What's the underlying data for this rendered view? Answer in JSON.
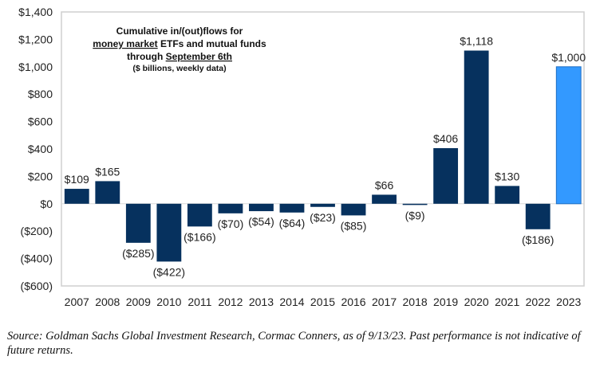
{
  "chart_data": {
    "type": "bar",
    "title_lines": [
      [
        {
          "text": "Cumulative in/(out)flows for",
          "underline": false
        }
      ],
      [
        {
          "text": "money market",
          "underline": true
        },
        {
          "text": " ETFs and mutual funds",
          "underline": false
        }
      ],
      [
        {
          "text": "through ",
          "underline": false
        },
        {
          "text": "September 6th",
          "underline": true
        }
      ]
    ],
    "subtitle": "($ billions, weekly data)",
    "xlabel": "",
    "ylabel": "",
    "categories": [
      "2007",
      "2008",
      "2009",
      "2010",
      "2011",
      "2012",
      "2013",
      "2014",
      "2015",
      "2016",
      "2017",
      "2018",
      "2019",
      "2020",
      "2021",
      "2022",
      "2023"
    ],
    "values": [
      109,
      165,
      -285,
      -422,
      -166,
      -70,
      -54,
      -64,
      -23,
      -85,
      66,
      -9,
      406,
      1118,
      130,
      -186,
      1000
    ],
    "data_labels": [
      "$109",
      "$165",
      "($285)",
      "($422)",
      "($166)",
      "($70)",
      "($54)",
      "($64)",
      "($23)",
      "($85)",
      "$66",
      "($9)",
      "$406",
      "$1,118",
      "$130",
      "($186)",
      "$1,000"
    ],
    "ylim": [
      -600,
      1400
    ],
    "yticks": [
      1400,
      1200,
      1000,
      800,
      600,
      400,
      200,
      0,
      -200,
      -400,
      -600
    ],
    "ytick_labels": [
      "$1,400",
      "$1,200",
      "$1,000",
      "$800",
      "$600",
      "$400",
      "$200",
      "$0",
      "($200)",
      "($400)",
      "($600)"
    ],
    "grid": false,
    "legend": "none",
    "colors": {
      "default": "#06315e",
      "highlight": "#3399ff",
      "highlight_border": "#1f6fc4",
      "frame": "#cfcfcf"
    },
    "highlight_index": 16
  },
  "source_note": "Source: Goldman Sachs Global Investment Research, Cormac Conners,  as of 9/13/23. Past performance is not indicative of future returns."
}
